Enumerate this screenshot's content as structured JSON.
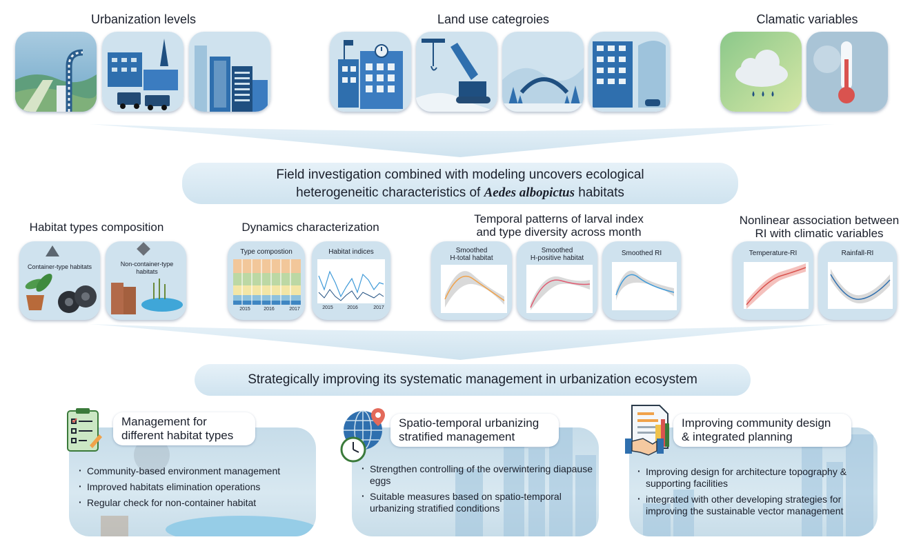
{
  "top": {
    "urbanization_title": "Urbanization levels",
    "landuse_title": "Land use categroies",
    "climatic_title": "Clamatic variables"
  },
  "banner1": {
    "line1": "Field investigation combined with modeling uncovers ecological",
    "line2_pre": "heterogeneitic characteristics of ",
    "line2_italic": "Aedes albopictus",
    "line2_post": " habitats"
  },
  "middle": {
    "habitat_title": "Habitat types composition",
    "container_label": "Container-type habitats",
    "noncontainer_label": "Non-container-type habitats",
    "dynamics_title": "Dynamics characterization",
    "type_composition": "Type compostion",
    "habitat_indices": "Habitat indices",
    "years": [
      "2015",
      "2016",
      "2017"
    ],
    "temporal_title_1": "Temporal patterns of larval index",
    "temporal_title_2": "and type diversity across month",
    "smoothed_htotal_1": "Smoothed",
    "smoothed_htotal_2": "H-total habitat",
    "smoothed_hpos_1": "Smoothed",
    "smoothed_hpos_2": "H-positive habitat",
    "smoothed_ri": "Smoothed RI",
    "nonlinear_title_1": "Nonlinear association between",
    "nonlinear_title_2": "RI with climatic variables",
    "temperature_ri": "Temperature-RI",
    "rainfall_ri": "Rainfall-RI"
  },
  "banner2": {
    "text": "Strategically improving its systematic management in urbanization ecosystem"
  },
  "cards": [
    {
      "title_1": "Management for",
      "title_2": "different habitat types",
      "bullets": [
        "Community-based environment management",
        "Improved habitats elimination operations",
        "Regular check for non-container habitat"
      ]
    },
    {
      "title_1": "Spatio-temporal urbanizing",
      "title_2": "stratified management",
      "bullets": [
        "Strengthen controlling of the overwintering diapause eggs",
        "Suitable measures based on spatio-temporal urbanizing stratified conditions"
      ]
    },
    {
      "title_1": "Improving community design",
      "title_2": "& integrated planning",
      "bullets": [
        "Improving design for architecture topography & supporting facilities",
        "integrated with other developing strategies for improving the sustainable vector management"
      ]
    }
  ],
  "colors": {
    "tile_blue": "#2f6fae",
    "tile_light": "#cfe2ee",
    "banner": "#d6e8f2",
    "accent_orange": "#f0a24a",
    "accent_red": "#d9534f"
  },
  "icons": [
    "checklist-icon",
    "globe-pin-icon",
    "clock-icon",
    "planning-document-icon",
    "handshake-icon",
    "thermometer-icon",
    "cloud-rain-icon"
  ]
}
